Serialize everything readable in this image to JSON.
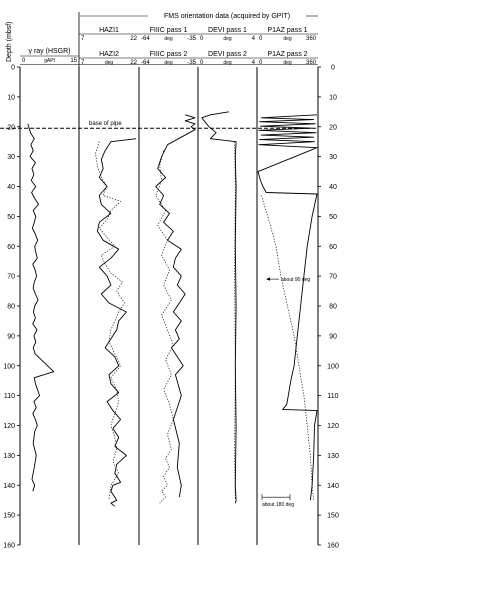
{
  "chart_data": {
    "type": "line",
    "super_header": "FMS orientation data (acquired by GPIT)",
    "y_axis": {
      "label": "Depth (mbsf)",
      "range": [
        0,
        160
      ],
      "ticks": [
        "0",
        "10",
        "20",
        "30",
        "40",
        "50",
        "60",
        "70",
        "80",
        "90",
        "100",
        "110",
        "120",
        "130",
        "140",
        "150",
        "160"
      ],
      "inverted": true
    },
    "tracks": [
      {
        "id": "gamma",
        "headers": [
          {
            "name": "γ ray (HSGR)",
            "scale_min": "0",
            "unit": "gAPI",
            "scale_max": "15"
          }
        ],
        "series": [
          {
            "name": "γ ray (HSGR)",
            "style": "solid",
            "range": [
              0,
              15
            ],
            "x": [
              1.8,
              2.5,
              3.5,
              2.6,
              3.2,
              2.4,
              3.8,
              2.9,
              3.4,
              2.7,
              3.9,
              2.8,
              3.6,
              4.6,
              3.2,
              3.9,
              3.5,
              3.0,
              3.8,
              4.4,
              3.6,
              3.9,
              4.3,
              3.1,
              3.7,
              4.1,
              3.5,
              3.2,
              3.8,
              4.5,
              3.6,
              3.3,
              3.8,
              3.1,
              4.2,
              3.4,
              3.9,
              3.2,
              3.7,
              8.6,
              3.5,
              3.8,
              4.9,
              3.4,
              4.0,
              3.1,
              3.8,
              4.3,
              3.6,
              3.2,
              4.0,
              3.5,
              2.9,
              3.6,
              3.1
            ],
            "depth": [
              19,
              22,
              24,
              26,
              28,
              30,
              32,
              34,
              36,
              38,
              40,
              42,
              44,
              46,
              48,
              50,
              52,
              54,
              56,
              58,
              60,
              62,
              64,
              66,
              68,
              70,
              72,
              74,
              76,
              78,
              80,
              82,
              84,
              86,
              88,
              90,
              92,
              94,
              96,
              102,
              104,
              106,
              110,
              112,
              114,
              116,
              118,
              120,
              122,
              126,
              130,
              134,
              138,
              140,
              142
            ]
          }
        ]
      },
      {
        "id": "hazi",
        "headers": [
          {
            "name": "HAZI1",
            "scale_min": "7",
            "unit": "",
            "scale_max": "22"
          },
          {
            "name": "HAZI2",
            "scale_min": "7",
            "unit": "deg",
            "scale_max": "22"
          }
        ],
        "series": [
          {
            "name": "HAZI1",
            "style": "solid",
            "range": [
              7,
              22
            ],
            "x": [
              21.5,
              15,
              13.5,
              12.5,
              13,
              12,
              14,
              12,
              12.5,
              15,
              12,
              11.5,
              13,
              17,
              15,
              12,
              14,
              15,
              12.5,
              14.5,
              19,
              17,
              16.5,
              15,
              13.5,
              16,
              17,
              14.5,
              15,
              17,
              14,
              15.5,
              17.5,
              15.5,
              17,
              16,
              19,
              16.5,
              16,
              17.5,
              15.5,
              15,
              16,
              16.5,
              15,
              16
            ],
            "depth": [
              24,
              25,
              28,
              31,
              34,
              37,
              40,
              43,
              46,
              49,
              52,
              55,
              58,
              61,
              64,
              67,
              70,
              73,
              76,
              79,
              82,
              85,
              88,
              91,
              94,
              97,
              100,
              103,
              106,
              109,
              112,
              115,
              118,
              121,
              124,
              127,
              130,
              133,
              136,
              139,
              140,
              142,
              144,
              145,
              146,
              147
            ]
          },
          {
            "name": "HAZI2",
            "style": "dotted",
            "range": [
              7,
              22
            ],
            "x": [
              12,
              11,
              11.5,
              12.5,
              14,
              13,
              17.5,
              15,
              14,
              12,
              14,
              16,
              12.5,
              13.5,
              15,
              18,
              16.5,
              18.5,
              17,
              16,
              15,
              14.5,
              16,
              17.5,
              15,
              16.5,
              17,
              16,
              15,
              16,
              16.5,
              15.5,
              17,
              15,
              14.5
            ],
            "depth": [
              25,
              29,
              33,
              37,
              40,
              43,
              45,
              48,
              51,
              54,
              57,
              60,
              63,
              66,
              69,
              72,
              75,
              79,
              82,
              85,
              88,
              92,
              96,
              100,
              104,
              108,
              112,
              116,
              120,
              124,
              128,
              132,
              136,
              140,
              145
            ]
          }
        ]
      },
      {
        "id": "fiic",
        "headers": [
          {
            "name": "FIIIC pass 1",
            "scale_min": "-64",
            "unit": "deg",
            "scale_max": "-35"
          },
          {
            "name": "FIIIC pass 2",
            "scale_min": "-64",
            "unit": "deg",
            "scale_max": "-35"
          }
        ],
        "series": [
          {
            "name": "FIIIC pass 1",
            "style": "solid",
            "range": [
              -64,
              -35
            ],
            "x": [
              -41,
              -36,
              -41,
              -36,
              -38,
              -36,
              -50,
              -53,
              -55,
              -51,
              -56,
              -52,
              -54,
              -49,
              -52,
              -47,
              -50,
              -43,
              -46,
              -47,
              -43,
              -45,
              -41,
              -44,
              -47,
              -43,
              -46,
              -44,
              -48,
              -45,
              -42,
              -46,
              -43,
              -47,
              -44,
              -45,
              -43,
              -44
            ],
            "depth": [
              16,
              17,
              18,
              19,
              20,
              21,
              26,
              30,
              34,
              37,
              40,
              43,
              46,
              49,
              52,
              55,
              58,
              61,
              64,
              67,
              70,
              73,
              76,
              79,
              82,
              85,
              88,
              91,
              94,
              97,
              100,
              103,
              110,
              118,
              126,
              134,
              140,
              144
            ]
          },
          {
            "name": "FIIIC pass 2",
            "style": "dotted",
            "range": [
              -64,
              -35
            ],
            "x": [
              -52,
              -54,
              -53,
              -56,
              -51,
              -55,
              -50,
              -53,
              -49,
              -52,
              -48,
              -53,
              -50,
              -47,
              -51,
              -48,
              -52,
              -49,
              -47,
              -50,
              -48,
              -51,
              -49,
              -52,
              -50,
              -53,
              -51,
              -54
            ],
            "depth": [
              28,
              33,
              38,
              43,
              48,
              53,
              58,
              63,
              68,
              73,
              78,
              83,
              88,
              93,
              98,
              103,
              108,
              113,
              118,
              123,
              128,
              131,
              134,
              137,
              140,
              142,
              144,
              146
            ]
          }
        ]
      },
      {
        "id": "devi",
        "headers": [
          {
            "name": "DEVI pass 1",
            "scale_min": "0",
            "unit": "deg",
            "scale_max": "4"
          },
          {
            "name": "DEVI pass 2",
            "scale_min": "0",
            "unit": "deg",
            "scale_max": "4"
          }
        ],
        "series": [
          {
            "name": "DEVI pass 1",
            "style": "solid",
            "range": [
              0,
              4
            ],
            "x": [
              2.1,
              0.8,
              0.2,
              0.7,
              1.2,
              0.8,
              2.6,
              2.55,
              2.6,
              2.55,
              2.6,
              2.55,
              2.6,
              2.55,
              2.6,
              2.55
            ],
            "depth": [
              15,
              16,
              17,
              20,
              22,
              24,
              25,
              30,
              40,
              60,
              80,
              100,
              120,
              140,
              145,
              146
            ]
          },
          {
            "name": "DEVI pass 2",
            "style": "dotted",
            "range": [
              0,
              4
            ],
            "x": [
              2.5,
              2.55,
              2.5,
              2.55,
              2.5,
              2.55
            ],
            "depth": [
              25,
              40,
              70,
              100,
              130,
              145
            ]
          }
        ]
      },
      {
        "id": "p1az",
        "headers": [
          {
            "name": "P1AZ pass 1",
            "scale_min": "0",
            "unit": "deg",
            "scale_max": "360"
          },
          {
            "name": "P1AZ pass 2",
            "scale_min": "0",
            "unit": "deg",
            "scale_max": "360"
          }
        ],
        "series": [
          {
            "name": "P1AZ pass 1",
            "style": "solid",
            "range": [
              0,
              360
            ],
            "x": [
              360,
              20,
              340,
              10,
              350,
              15,
              330,
              5,
              355,
              20,
              340,
              10,
              345,
              5,
              360,
              0,
              15,
              30,
              40,
              50,
              360,
              330,
              300,
              280,
              260,
              240,
              220,
              200,
              185,
              175,
              160,
              150,
              360,
              345,
              340,
              330,
              320
            ],
            "depth": [
              16,
              17,
              17.6,
              18.3,
              19,
              19.8,
              20.5,
              21.2,
              22,
              22.8,
              23.5,
              24.3,
              25,
              26,
              27,
              35,
              38,
              40,
              41,
              42,
              42.5,
              50,
              60,
              70,
              80,
              90,
              100,
              105,
              110,
              113,
              114,
              114.6,
              115,
              120,
              130,
              140,
              145
            ]
          },
          {
            "name": "P1AZ pass 2",
            "style": "dotted",
            "range": [
              0,
              360
            ],
            "x": [
              20,
              60,
              110,
              140,
              180,
              220,
              250,
              280,
              300,
              320,
              330,
              340
            ],
            "depth": [
              43,
              50,
              60,
              70,
              80,
              90,
              100,
              110,
              120,
              130,
              140,
              145
            ]
          }
        ]
      }
    ],
    "annotations": [
      {
        "text": "base of pipe",
        "depth": 20.5,
        "style": "dashed"
      },
      {
        "text": "about 90 deg",
        "track": "p1az",
        "depth": 72
      },
      {
        "text": "about 180 deg",
        "track": "p1az",
        "depth": 148
      }
    ]
  }
}
